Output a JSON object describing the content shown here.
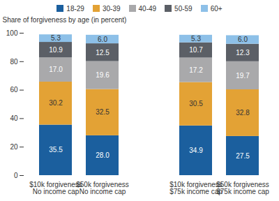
{
  "chart_data": {
    "type": "bar",
    "stacked": true,
    "data_labels": true,
    "legend": "top",
    "grid": false,
    "y_label": "Share of forgiveness by age (in percent)",
    "categories": [
      "$10k forgiveness\nNo income cap",
      "$50k forgiveness\nNo income cap",
      "$10k forgiveness\n$75k income cap",
      "$50k forgiveness\n$75k income cap"
    ],
    "ylim": [
      0,
      100
    ],
    "yticks": [
      0,
      20,
      40,
      60,
      80,
      100
    ],
    "series": [
      {
        "name": "18-29",
        "color": "#1b5f9e",
        "values": [
          35.5,
          28.0,
          34.9,
          27.5
        ],
        "value_labels": [
          "35.5",
          "28.0",
          "34.9",
          "27.5"
        ]
      },
      {
        "name": "30-39",
        "color": "#e3a235",
        "values": [
          30.2,
          32.5,
          30.5,
          32.8
        ],
        "value_labels": [
          "30.2",
          "32.5",
          "30.5",
          "32.8"
        ]
      },
      {
        "name": "40-49",
        "color": "#a9a9ab",
        "values": [
          17.0,
          19.6,
          17.2,
          19.7
        ],
        "value_labels": [
          "17.0",
          "19.6",
          "17.2",
          "19.7"
        ]
      },
      {
        "name": "50-59",
        "color": "#5b5f66",
        "values": [
          10.9,
          12.5,
          10.7,
          12.3
        ],
        "value_labels": [
          "10.9",
          "12.5",
          "10.7",
          "12.3"
        ]
      },
      {
        "name": "60+",
        "color": "#8dc0e8",
        "values": [
          5.3,
          6.0,
          5.3,
          6.0
        ],
        "value_labels": [
          "5.3",
          "6.0",
          "5.3",
          "6.0"
        ]
      }
    ]
  }
}
